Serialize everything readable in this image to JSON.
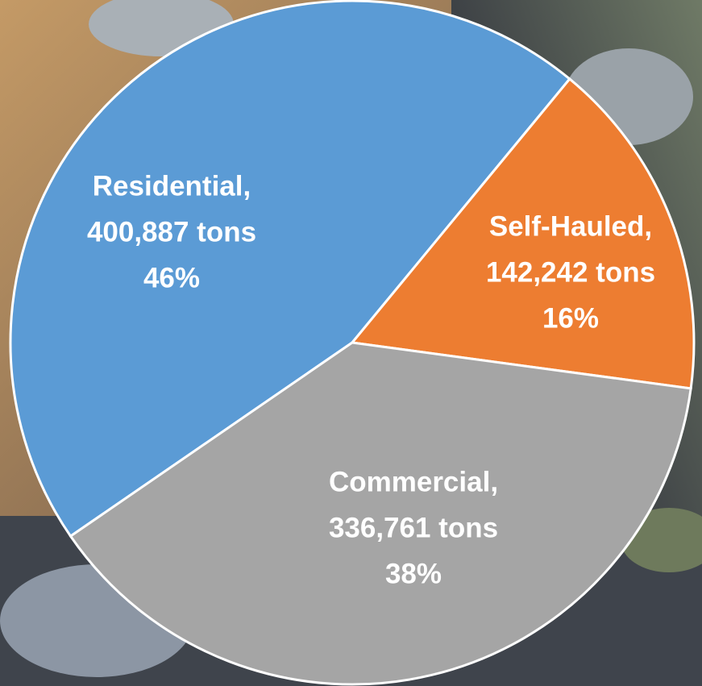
{
  "chart_data": {
    "type": "pie",
    "categories": [
      "Residential,",
      "Self-Hauled,",
      "Commercial,"
    ],
    "values": [
      400887,
      142242,
      336761
    ],
    "value_labels": [
      "400,887 tons",
      "142,242 tons",
      "336,761 tons"
    ],
    "percents": [
      46,
      16,
      38
    ],
    "percent_labels": [
      "46%",
      "16%",
      "38%"
    ],
    "colors": [
      "#5b9bd5",
      "#ed7d31",
      "#a5a5a5"
    ]
  }
}
